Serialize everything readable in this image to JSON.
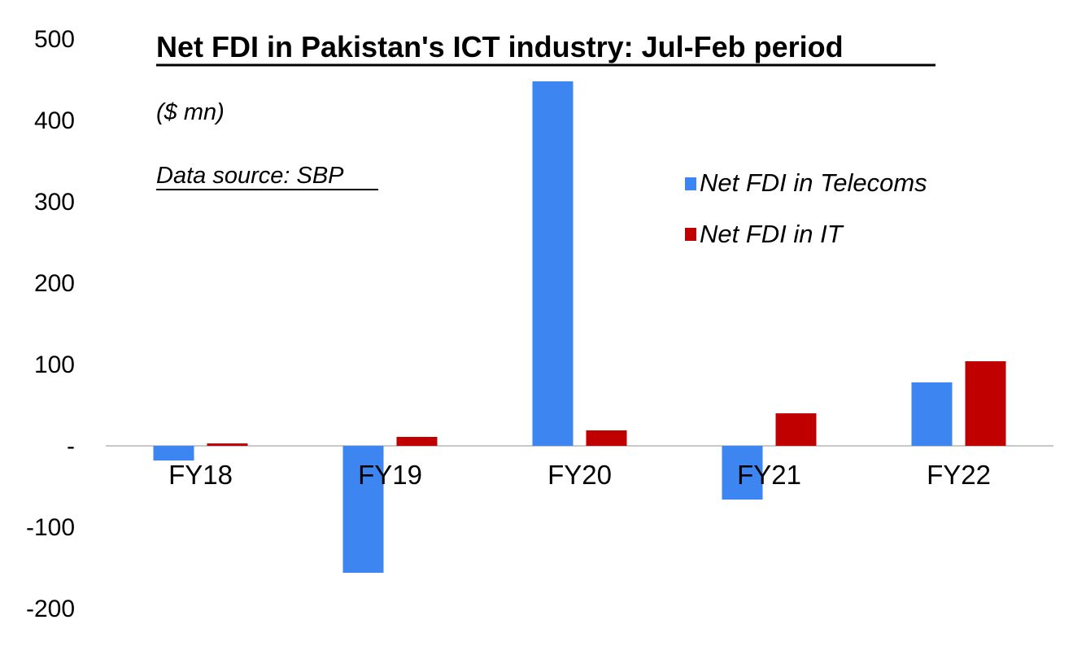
{
  "chart_data": {
    "type": "bar",
    "title": "Net FDI in Pakistan's ICT industry: Jul-Feb period",
    "subtitle": "($ mn)",
    "source_note": "Data source: SBP",
    "categories": [
      "FY18",
      "FY19",
      "FY20",
      "FY21",
      "FY22"
    ],
    "series": [
      {
        "name": "Net FDI in Telecoms",
        "color": "#3d85f0",
        "values": [
          -18,
          -156,
          448,
          -66,
          78
        ]
      },
      {
        "name": "Net FDI in IT",
        "color": "#c00000",
        "values": [
          3,
          11,
          19,
          40,
          104
        ]
      }
    ],
    "ylim": [
      -200,
      500
    ],
    "yticks": [
      500,
      400,
      300,
      200,
      100,
      0,
      -100,
      -200
    ],
    "ytick_labels": [
      "500",
      "400",
      "300",
      "200",
      "100",
      "-",
      "-100",
      "-200"
    ],
    "grid": false,
    "legend_position": "top-right"
  }
}
